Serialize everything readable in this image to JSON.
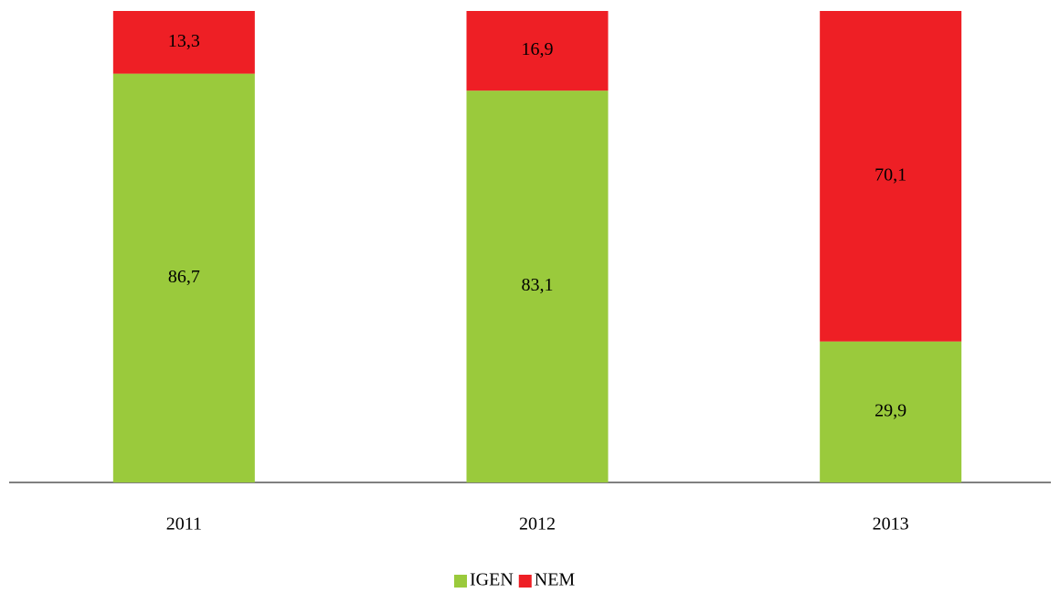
{
  "chart_data": {
    "type": "stacked_bar",
    "categories": [
      "2011",
      "2012",
      "2013"
    ],
    "series": [
      {
        "name": "IGEN",
        "color": "#9aca3c",
        "values": [
          86.7,
          83.1,
          29.9
        ],
        "value_labels": [
          "86,7",
          "83,1",
          "29,9"
        ]
      },
      {
        "name": "NEM",
        "color": "#ee1f25",
        "values": [
          13.3,
          16.9,
          70.1
        ],
        "value_labels": [
          "13,3",
          "16,9",
          "70,1"
        ]
      }
    ],
    "ylim": [
      0,
      100
    ],
    "legend": "bottom"
  }
}
